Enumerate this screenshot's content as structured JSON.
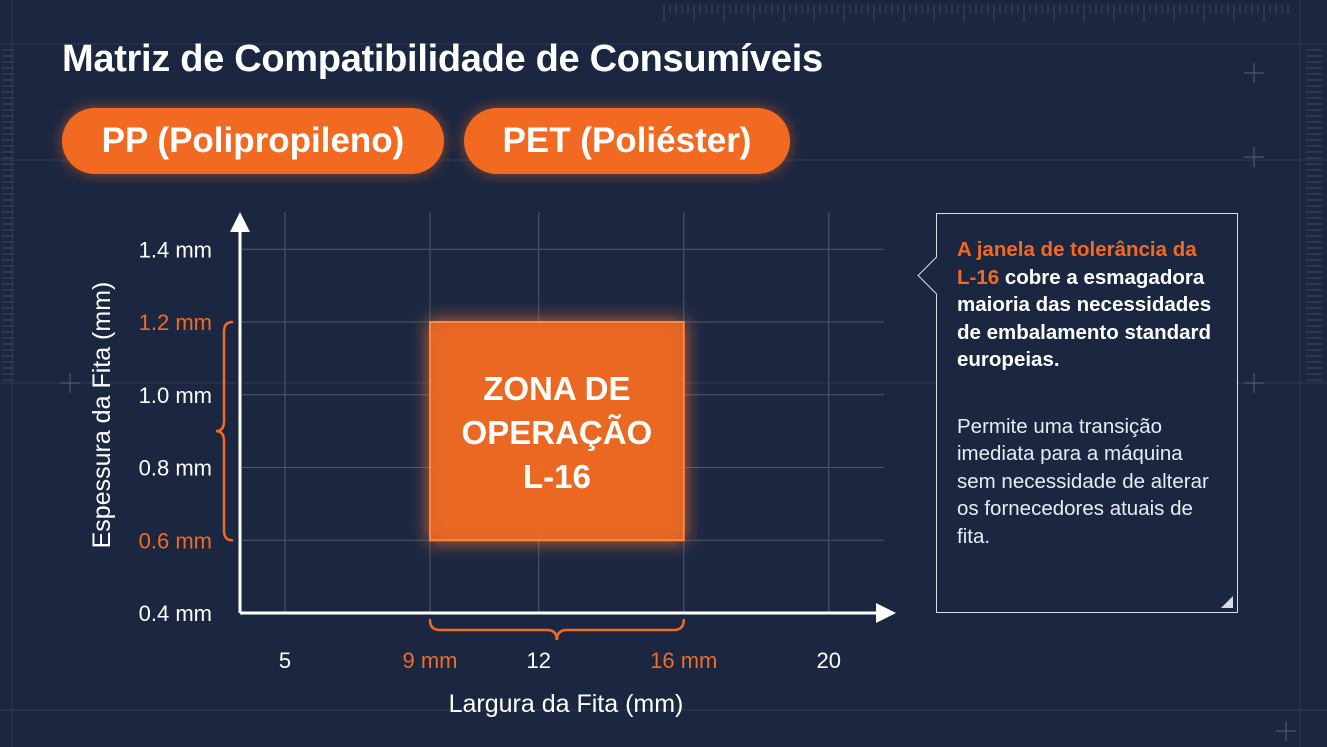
{
  "title": "Matriz de Compatibilidade de Consumíveis",
  "materials": [
    {
      "label": "PP (Polipropileno)"
    },
    {
      "label": "PET (Poliéster)"
    }
  ],
  "colors": {
    "accent": "#f26a21",
    "background": "#1b2741",
    "text": "#ffffff",
    "grid": "#4a5870"
  },
  "chart_data": {
    "type": "area",
    "title": "",
    "xlabel": "Largura da Fita (mm)",
    "ylabel": "Espessura da Fita (mm)",
    "x_ticks": [
      {
        "value": 5,
        "label": "5",
        "highlight": false
      },
      {
        "value": 9,
        "label": "9 mm",
        "highlight": true
      },
      {
        "value": 12,
        "label": "12",
        "highlight": false
      },
      {
        "value": 16,
        "label": "16 mm",
        "highlight": true
      },
      {
        "value": 20,
        "label": "20",
        "highlight": false
      }
    ],
    "y_ticks": [
      {
        "value": 0.4,
        "label": "0.4 mm",
        "highlight": false
      },
      {
        "value": 0.6,
        "label": "0.6 mm",
        "highlight": true
      },
      {
        "value": 0.8,
        "label": "0.8 mm",
        "highlight": false
      },
      {
        "value": 1.0,
        "label": "1.0 mm",
        "highlight": false
      },
      {
        "value": 1.2,
        "label": "1.2 mm",
        "highlight": true
      },
      {
        "value": 1.4,
        "label": "1.4 mm",
        "highlight": false
      }
    ],
    "zone": {
      "label_lines": [
        "ZONA DE",
        "OPERAÇÃO",
        "L-16"
      ],
      "x_min": 9,
      "x_max": 16,
      "y_min": 0.6,
      "y_max": 1.2
    },
    "grid": true
  },
  "callout": {
    "highlight": "A janela de tolerância da L-16",
    "main_rest": " cobre a esmagadora maioria das necessidades de embalamento standard europeias.",
    "sub": "Permite uma transição imediata para a máquina sem necessidade de alterar os fornecedores atuais de fita."
  }
}
